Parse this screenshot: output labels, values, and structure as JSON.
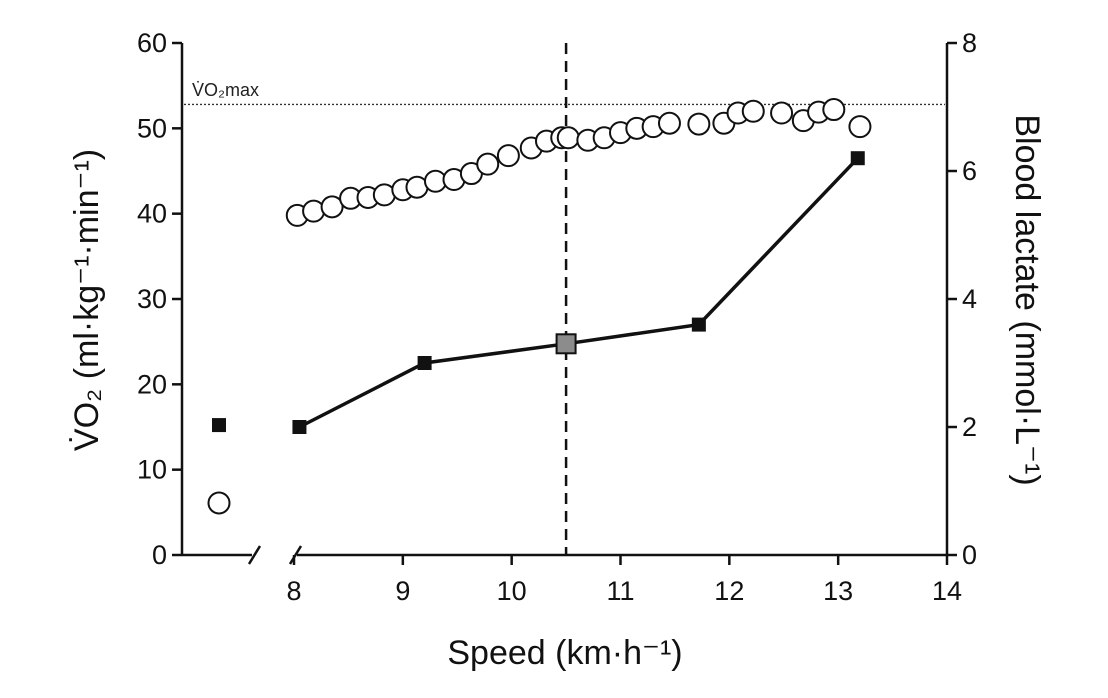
{
  "chart_data": {
    "type": "scatter",
    "xlabel": "Speed (km·h⁻¹)",
    "ylabel_left": "V̇O₂ (ml·kg⁻¹·min⁻¹)",
    "ylabel_right": "Blood lactate (mmol·L⁻¹)",
    "xlim": [
      8,
      14
    ],
    "ylim_left": [
      0,
      60
    ],
    "ylim_right": [
      0,
      8
    ],
    "x_ticks": [
      "8",
      "9",
      "10",
      "11",
      "12",
      "13",
      "14"
    ],
    "y_left_ticks": [
      "0",
      "10",
      "20",
      "30",
      "40",
      "50",
      "60"
    ],
    "y_right_ticks": [
      "0",
      "2",
      "4",
      "6",
      "8"
    ],
    "axis_break": "between rest and 8 km·h⁻¹",
    "reference_line": {
      "label": "V̇O₂max",
      "value": 52.8,
      "style": "dotted"
    },
    "vertical_line": {
      "x": 10.5,
      "style": "dashed"
    },
    "rest": {
      "vo2": 6.1,
      "lactate": 2.03
    },
    "series": [
      {
        "name": "VO2",
        "axis": "left",
        "marker": "open-circle",
        "x": [
          8.03,
          8.18,
          8.35,
          8.52,
          8.68,
          8.83,
          9.0,
          9.13,
          9.3,
          9.47,
          9.63,
          9.78,
          9.97,
          10.18,
          10.32,
          10.46,
          10.52,
          10.7,
          10.85,
          11.0,
          11.15,
          11.3,
          11.45,
          11.72,
          11.95,
          12.08,
          12.22,
          12.48,
          12.68,
          12.82,
          12.96,
          13.2
        ],
        "values": [
          39.8,
          40.3,
          40.8,
          41.8,
          41.9,
          42.2,
          42.8,
          43.1,
          43.8,
          44.0,
          44.7,
          45.8,
          46.8,
          47.7,
          48.5,
          48.9,
          48.9,
          48.6,
          48.9,
          49.5,
          50.0,
          50.2,
          50.6,
          50.5,
          50.6,
          51.8,
          52.0,
          51.8,
          50.9,
          51.9,
          52.2,
          50.2
        ]
      },
      {
        "name": "Blood lactate",
        "axis": "right",
        "marker": "filled-square",
        "x": [
          8.05,
          9.2,
          10.5,
          11.72,
          13.18
        ],
        "values": [
          2.0,
          3.0,
          3.3,
          3.6,
          6.2
        ],
        "highlight_index": 2
      }
    ]
  }
}
